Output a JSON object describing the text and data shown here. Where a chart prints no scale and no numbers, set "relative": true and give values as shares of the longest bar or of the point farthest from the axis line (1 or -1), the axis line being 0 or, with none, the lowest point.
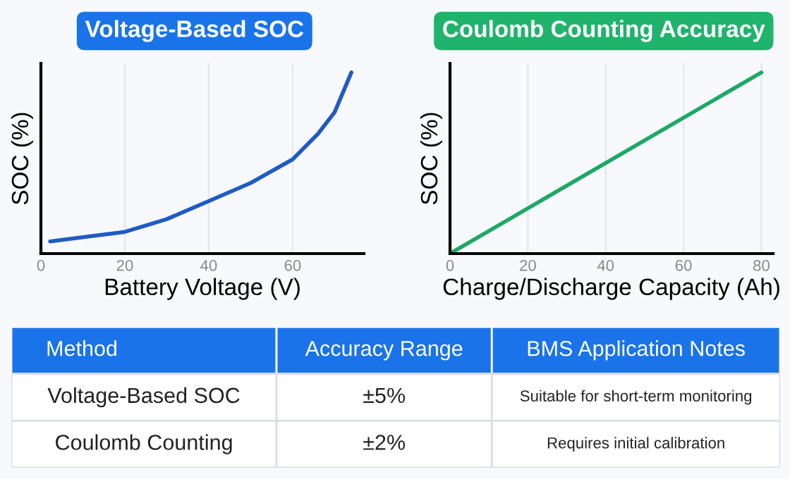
{
  "chart_data": [
    {
      "type": "line",
      "title": "Voltage-Based SOC",
      "xlabel": "Battery Voltage (V)",
      "ylabel": "SOC (%)",
      "relative": true,
      "grid": "x",
      "xlim": [
        0,
        77
      ],
      "xticks": [
        0,
        20,
        40,
        60
      ],
      "series": [
        {
          "color": "#1f5bc4",
          "x": [
            2.2,
            10,
            20,
            30,
            40,
            50,
            60,
            66,
            70,
            74
          ],
          "values": [
            0.067,
            0.09,
            0.12,
            0.19,
            0.29,
            0.39,
            0.52,
            0.66,
            0.78,
            1
          ]
        }
      ]
    },
    {
      "type": "line",
      "title": "Coulomb Counting Accuracy",
      "xlabel": "Charge/Discharge Capacity (Ah)",
      "ylabel": "SOC (%)",
      "relative": true,
      "grid": "x",
      "xlim": [
        0,
        83
      ],
      "xticks": [
        0,
        20,
        40,
        60,
        80
      ],
      "series": [
        {
          "color": "#1ea866",
          "x": [
            0,
            80
          ],
          "values": [
            0,
            1
          ]
        }
      ]
    },
    {
      "type": "other",
      "categories": [
        "Method",
        "Accuracy Range",
        "BMS Application Notes"
      ],
      "annotations": [
        "Voltage-Based SOC",
        "±5%",
        "Suitable for short-term monitoring",
        "Coulomb Counting",
        "±2%",
        "Requires initial calibration"
      ]
    }
  ]
}
